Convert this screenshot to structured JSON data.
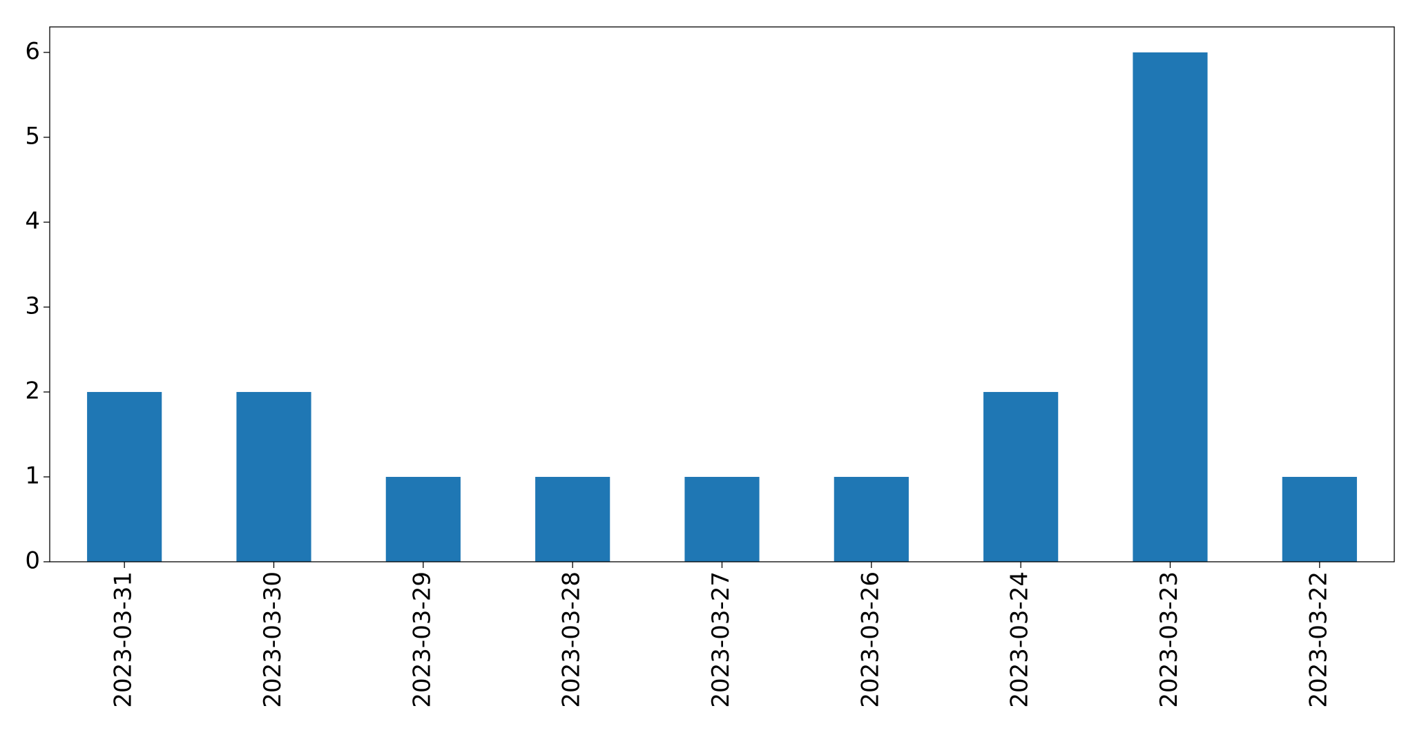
{
  "chart_data": {
    "type": "bar",
    "categories": [
      "2023-03-31",
      "2023-03-30",
      "2023-03-29",
      "2023-03-28",
      "2023-03-27",
      "2023-03-26",
      "2023-03-24",
      "2023-03-23",
      "2023-03-22"
    ],
    "values": [
      2,
      2,
      1,
      1,
      1,
      1,
      2,
      6,
      1
    ],
    "color": "#1f77b4",
    "ylim": [
      0,
      6.3
    ],
    "yticks": [
      0,
      1,
      2,
      3,
      4,
      5,
      6
    ],
    "grid": false
  }
}
